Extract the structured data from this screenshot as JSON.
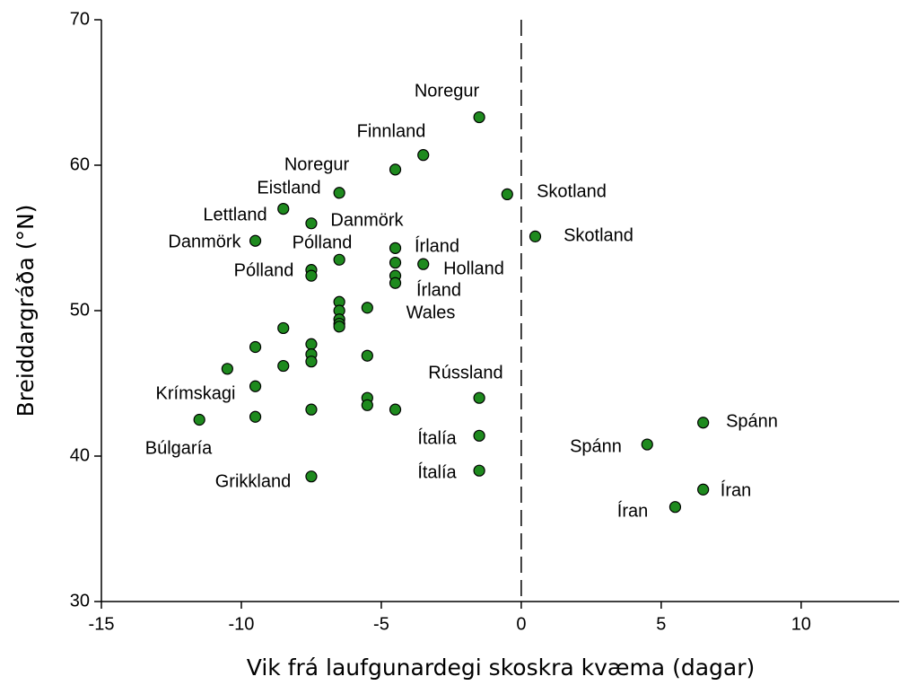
{
  "chart_data": {
    "type": "scatter",
    "x_label": "Vik frá laufgunardegi skoskra kvæma (dagar)",
    "y_label": "Breiddargráða (°N)",
    "xlim": [
      -15,
      13.5
    ],
    "ylim": [
      30,
      70
    ],
    "xticks": [
      -15,
      -10,
      -5,
      0,
      5,
      10
    ],
    "yticks": [
      30,
      40,
      50,
      60,
      70
    ],
    "vline": 0,
    "color": "#1e8a1e",
    "x": [
      -1.5,
      -3.5,
      -4.5,
      -6.5,
      -0.5,
      -8.5,
      -7.5,
      0.5,
      -9.5,
      -4.5,
      -6.5,
      -4.5,
      -3.5,
      -7.5,
      -7.5,
      -4.5,
      -4.5,
      -6.5,
      -5.5,
      -6.5,
      -6.5,
      -6.5,
      -6.5,
      -8.5,
      -9.5,
      -7.5,
      -7.5,
      -7.5,
      -10.5,
      -8.5,
      -5.5,
      -1.5,
      -9.5,
      -5.5,
      -5.5,
      -4.5,
      -7.5,
      -9.5,
      -11.5,
      6.5,
      -1.5,
      4.5,
      -1.5,
      -7.5,
      6.5,
      5.5
    ],
    "y": [
      63.3,
      60.7,
      59.7,
      58.1,
      58.0,
      57.0,
      56.0,
      55.1,
      54.8,
      54.3,
      53.5,
      53.3,
      53.2,
      52.8,
      52.4,
      52.4,
      51.9,
      50.6,
      50.2,
      50.0,
      49.4,
      49.1,
      48.9,
      48.8,
      47.5,
      47.7,
      47.0,
      46.5,
      46.0,
      46.2,
      46.9,
      44.0,
      44.8,
      44.0,
      43.5,
      43.2,
      43.2,
      42.7,
      42.5,
      42.3,
      41.4,
      40.8,
      39.0,
      38.6,
      37.7,
      36.5
    ],
    "annotations": [
      "Noregur",
      "Finnland",
      "Noregur",
      "Eistland",
      "Skotland",
      "Lettland",
      "Danmörk",
      "Skotland",
      "Danmörk",
      "Pólland",
      "Írland",
      "Pólland",
      "Holland",
      "Írland",
      "Wales",
      "Rússland",
      "Krímskagi",
      "Spánn",
      "Ítalía",
      "Spánn",
      "Búlgaría",
      "Ítalía",
      "Grikkland",
      "Íran",
      "Íran"
    ]
  }
}
